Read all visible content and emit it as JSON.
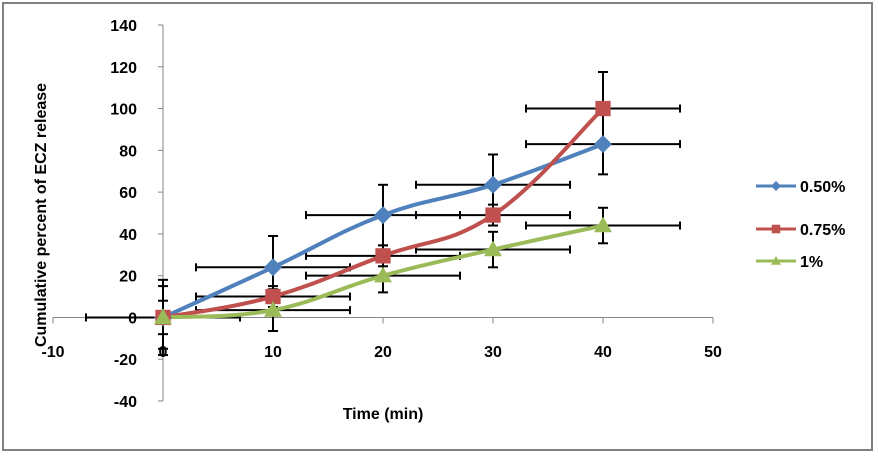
{
  "chart_data": {
    "type": "line",
    "title": "",
    "xlabel": "Time (min)",
    "ylabel": "Cumulative percent of ECZ release",
    "xlim": [
      -10,
      50
    ],
    "ylim": [
      -40,
      140
    ],
    "xticks": [
      -10,
      0,
      10,
      20,
      30,
      40,
      50
    ],
    "yticks": [
      -40,
      -20,
      0,
      20,
      40,
      60,
      80,
      100,
      120,
      140
    ],
    "grid": false,
    "legend_position": "right",
    "smooth": true,
    "x_error": 7,
    "series": [
      {
        "name": "0.50%",
        "color": "#4F81BD",
        "marker": "diamond",
        "x": [
          0,
          10,
          20,
          30,
          40
        ],
        "y": [
          0,
          24,
          49,
          63.5,
          83
        ],
        "y_error": [
          18,
          15,
          14.5,
          14.5,
          14.5
        ]
      },
      {
        "name": "0.75%",
        "color": "#C0504D",
        "marker": "square",
        "x": [
          0,
          10,
          20,
          30,
          40
        ],
        "y": [
          0,
          10,
          29.5,
          49,
          100
        ],
        "y_error": [
          15,
          5,
          5,
          5,
          17.5
        ]
      },
      {
        "name": "1%",
        "color": "#9BBB59",
        "marker": "triangle",
        "x": [
          0,
          10,
          20,
          30,
          40
        ],
        "y": [
          0,
          3.5,
          20,
          32.5,
          44
        ],
        "y_error": [
          8,
          10,
          8,
          8.5,
          8.5
        ]
      }
    ]
  }
}
